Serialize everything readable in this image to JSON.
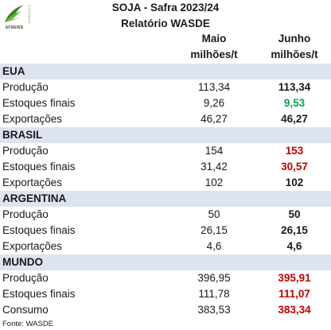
{
  "logo": {
    "brand": "AFNEWS",
    "tagline": "AGRÍCOLA"
  },
  "header": {
    "title": "SOJA - Safra 2023/24",
    "subtitle": "Relatório WASDE"
  },
  "columns": {
    "maio": "Maio\nmilhões/t",
    "junho": "Junho\nmilhões/t"
  },
  "colors": {
    "region_bg": "#dde3ef",
    "red": "#c00000",
    "green": "#00a550"
  },
  "sections": [
    {
      "name": "EUA",
      "rows": [
        {
          "label": "Produção",
          "maio": "113,34",
          "junho": "113,34",
          "junho_color": "black"
        },
        {
          "label": "Estoques finais",
          "maio": "9,26",
          "junho": "9,53",
          "junho_color": "green"
        },
        {
          "label": "Exportações",
          "maio": "46,27",
          "junho": "46,27",
          "junho_color": "black"
        }
      ]
    },
    {
      "name": "BRASIL",
      "rows": [
        {
          "label": "Produção",
          "maio": "154",
          "junho": "153",
          "junho_color": "red"
        },
        {
          "label": "Estoques finais",
          "maio": "31,42",
          "junho": "30,57",
          "junho_color": "red"
        },
        {
          "label": "Exportações",
          "maio": "102",
          "junho": "102",
          "junho_color": "black"
        }
      ]
    },
    {
      "name": "ARGENTINA",
      "rows": [
        {
          "label": "Produção",
          "maio": "50",
          "junho": "50",
          "junho_color": "black"
        },
        {
          "label": "Estoques finais",
          "maio": "26,15",
          "junho": "26,15",
          "junho_color": "black"
        },
        {
          "label": "Exportações",
          "maio": "4,6",
          "junho": "4,6",
          "junho_color": "black"
        }
      ]
    },
    {
      "name": "MUNDO",
      "rows": [
        {
          "label": "Produção",
          "maio": "396,95",
          "junho": "395,91",
          "junho_color": "red"
        },
        {
          "label": "Estoques finais",
          "maio": "111,78",
          "junho": "111,07",
          "junho_color": "red"
        },
        {
          "label": "Consumo",
          "maio": "383,53",
          "junho": "383,34",
          "junho_color": "red"
        }
      ]
    }
  ],
  "footer": {
    "source": "Fonte: WASDE"
  }
}
